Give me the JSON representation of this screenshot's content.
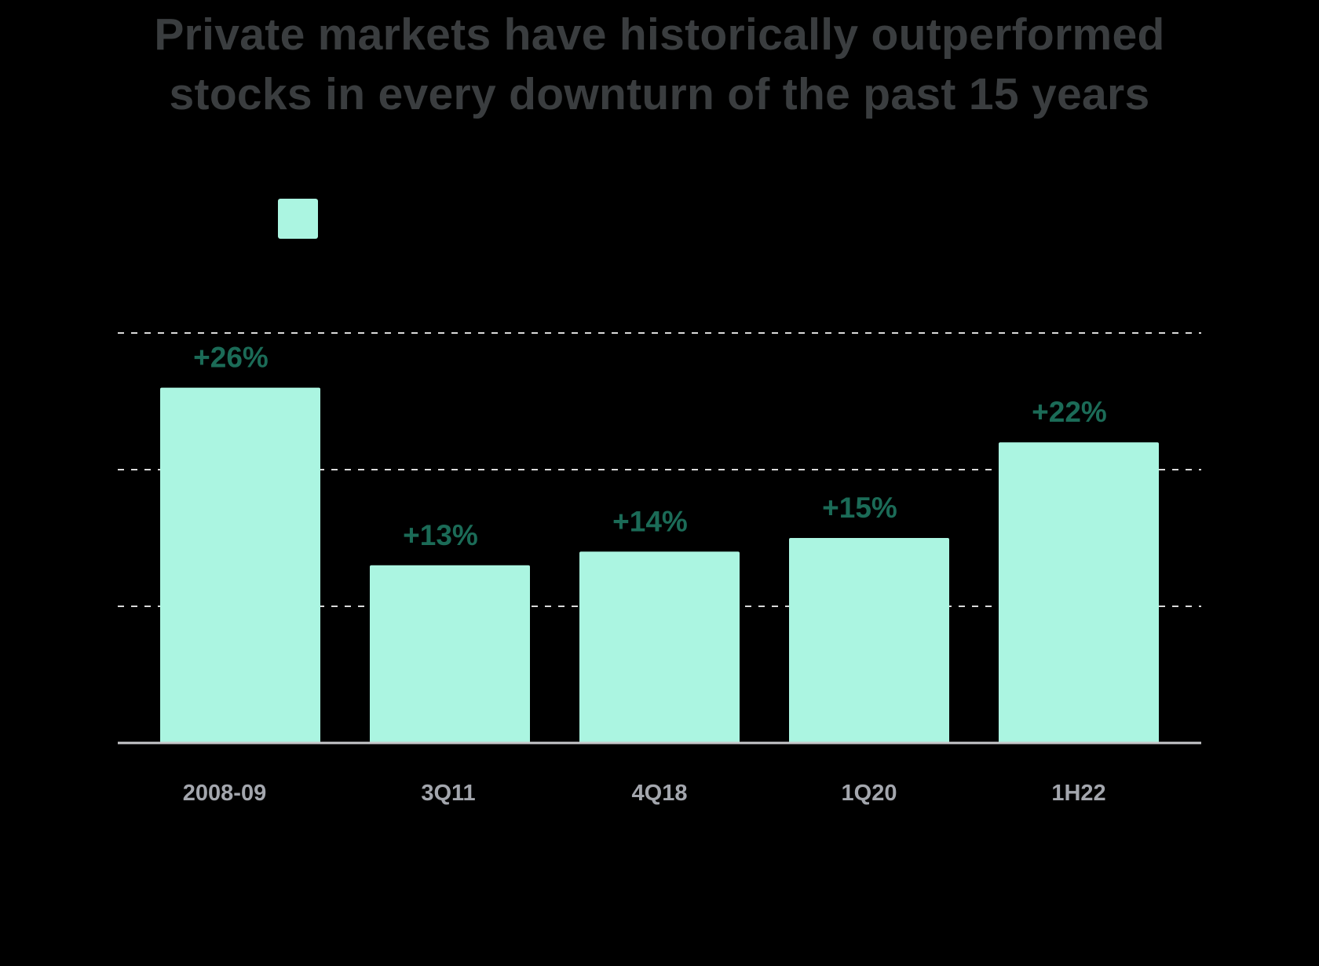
{
  "chart_data": {
    "type": "bar",
    "title_lines": [
      "Private markets have historically outperformed",
      "stocks in every downturn of the past 15 years"
    ],
    "categories": [
      "2008-09",
      "3Q11",
      "4Q18",
      "1Q20",
      "1H22"
    ],
    "series": [
      {
        "values": [
          26,
          13,
          14,
          15,
          22
        ],
        "data_labels": [
          "+26%",
          "+13%",
          "+14%",
          "+15%",
          "+22%"
        ],
        "color": "#abf5e1"
      }
    ],
    "ylim": [
      0,
      30
    ],
    "gridlines": [
      10,
      20,
      30
    ],
    "grid": true,
    "legend_placement": "top-center",
    "colors": {
      "background": "#000000",
      "bar": "#abf5e1",
      "data_label": "#1b6b57",
      "category_label": "#a3a6ad",
      "title": "#3a3d3f",
      "baseline": "#c8c9cc",
      "gridline": "#d9d9d9"
    }
  }
}
